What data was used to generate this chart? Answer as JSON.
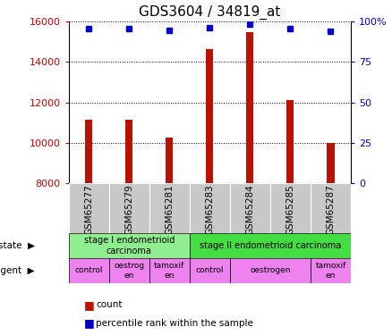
{
  "title": "GDS3604 / 34819_at",
  "samples": [
    "GSM65277",
    "GSM65279",
    "GSM65281",
    "GSM65283",
    "GSM65284",
    "GSM65285",
    "GSM65287"
  ],
  "counts": [
    11150,
    11150,
    10250,
    14650,
    15500,
    12100,
    9980
  ],
  "percentiles": [
    95.5,
    95.5,
    94.5,
    96.5,
    98.5,
    95.5,
    94.0
  ],
  "ymin": 8000,
  "ymax": 16000,
  "yticks": [
    8000,
    10000,
    12000,
    14000,
    16000
  ],
  "y2ticks": [
    0,
    25,
    50,
    75,
    100
  ],
  "y2min": 0,
  "y2max": 100,
  "bar_color": "#bb1100",
  "dot_color": "#0000cc",
  "bar_width": 0.18,
  "left_label_color": "#cc0000",
  "right_label_color": "#0000cc",
  "tick_label_bg": "#c8c8c8",
  "stage1_color": "#90ee90",
  "stage2_color": "#44dd44",
  "agent_color": "#ee82ee",
  "label_fontsize": 8,
  "title_fontsize": 11
}
